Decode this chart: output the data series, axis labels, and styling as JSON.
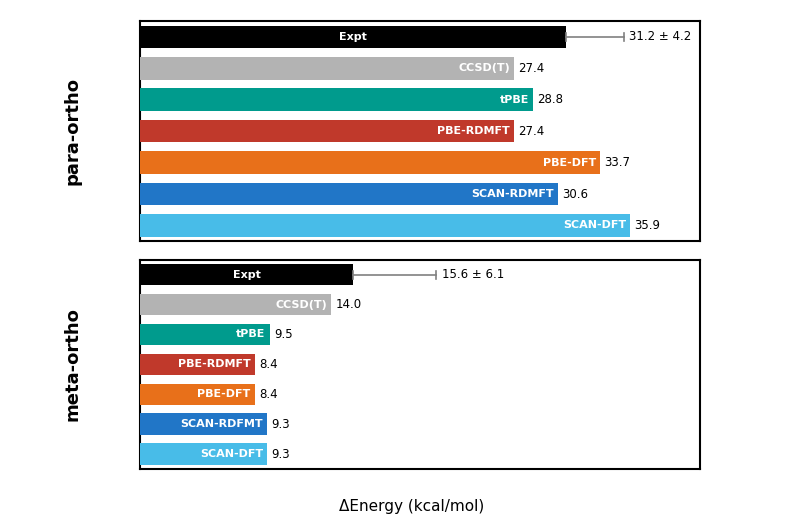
{
  "para_ortho": {
    "labels": [
      "Expt",
      "CCSD(T)",
      "tPBE",
      "PBE-RDMFT",
      "PBE-DFT",
      "SCAN-RDMFT",
      "SCAN-DFT"
    ],
    "values": [
      31.2,
      27.4,
      28.8,
      27.4,
      33.7,
      30.6,
      35.9
    ],
    "colors": [
      "#000000",
      "#b3b3b3",
      "#009b8d",
      "#c0392b",
      "#e8701a",
      "#2176c7",
      "#48bce8"
    ],
    "display_values": [
      "",
      "27.4",
      "28.8",
      "27.4",
      "33.7",
      "30.6",
      "35.9"
    ],
    "expt_annotation": "31.2 ± 4.2",
    "expt_value": 31.2,
    "expt_err": 4.2
  },
  "meta_ortho": {
    "labels": [
      "Expt",
      "CCSD(T)",
      "tPBE",
      "PBE-RDMFT",
      "PBE-DFT",
      "SCAN-RDFMT",
      "SCAN-DFT"
    ],
    "values": [
      15.6,
      14.0,
      9.5,
      8.4,
      8.4,
      9.3,
      9.3
    ],
    "colors": [
      "#000000",
      "#b3b3b3",
      "#009b8d",
      "#c0392b",
      "#e8701a",
      "#2176c7",
      "#48bce8"
    ],
    "display_values": [
      "",
      "14.0",
      "9.5",
      "8.4",
      "8.4",
      "9.3",
      "9.3"
    ],
    "expt_annotation": "15.6 ± 6.1",
    "expt_value": 15.6,
    "expt_err": 6.1
  },
  "xlabel": "ΔEnergy (kcal/mol)",
  "bar_height": 0.72,
  "xlim": [
    0,
    41
  ],
  "group_label_fontsize": 13,
  "bar_label_fontsize": 8,
  "value_fontsize": 8.5
}
